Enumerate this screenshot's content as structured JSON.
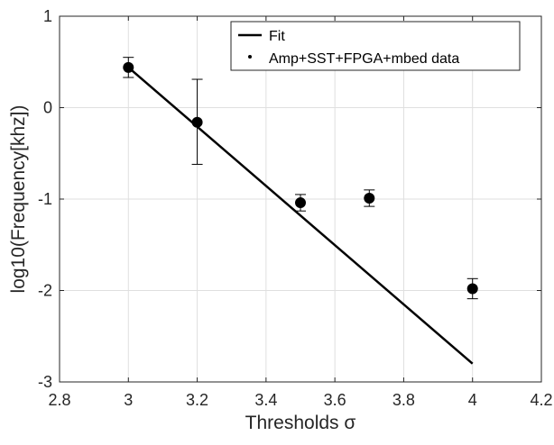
{
  "chart_data": {
    "type": "scatter",
    "xlabel": "Thresholds σ",
    "ylabel": "log10(Frequency[khz])",
    "xlim": [
      2.8,
      4.2
    ],
    "ylim": [
      -3,
      1
    ],
    "xticks": [
      2.8,
      3,
      3.2,
      3.4,
      3.6,
      3.8,
      4,
      4.2
    ],
    "xtick_labels": [
      "2.8",
      "3",
      "3.2",
      "3.4",
      "3.6",
      "3.8",
      "4",
      "4.2"
    ],
    "yticks": [
      -3,
      -2,
      -1,
      0,
      1
    ],
    "ytick_labels": [
      "-3",
      "-2",
      "-1",
      "0",
      "1"
    ],
    "grid": true,
    "legend_placement": "top-right",
    "series": [
      {
        "name": "Fit",
        "kind": "line",
        "color": "#000000",
        "x": [
          3,
          4
        ],
        "y": [
          0.44,
          -2.8
        ]
      },
      {
        "name": "Amp+SST+FPGA+mbed data",
        "kind": "errorbar",
        "color": "#000000",
        "x": [
          3,
          3.2,
          3.5,
          3.7,
          4
        ],
        "y": [
          0.44,
          -0.16,
          -1.04,
          -0.99,
          -1.98
        ],
        "err_low": [
          0.11,
          0.46,
          0.09,
          0.09,
          0.11
        ],
        "err_high": [
          0.11,
          0.47,
          0.09,
          0.09,
          0.11
        ]
      }
    ]
  }
}
